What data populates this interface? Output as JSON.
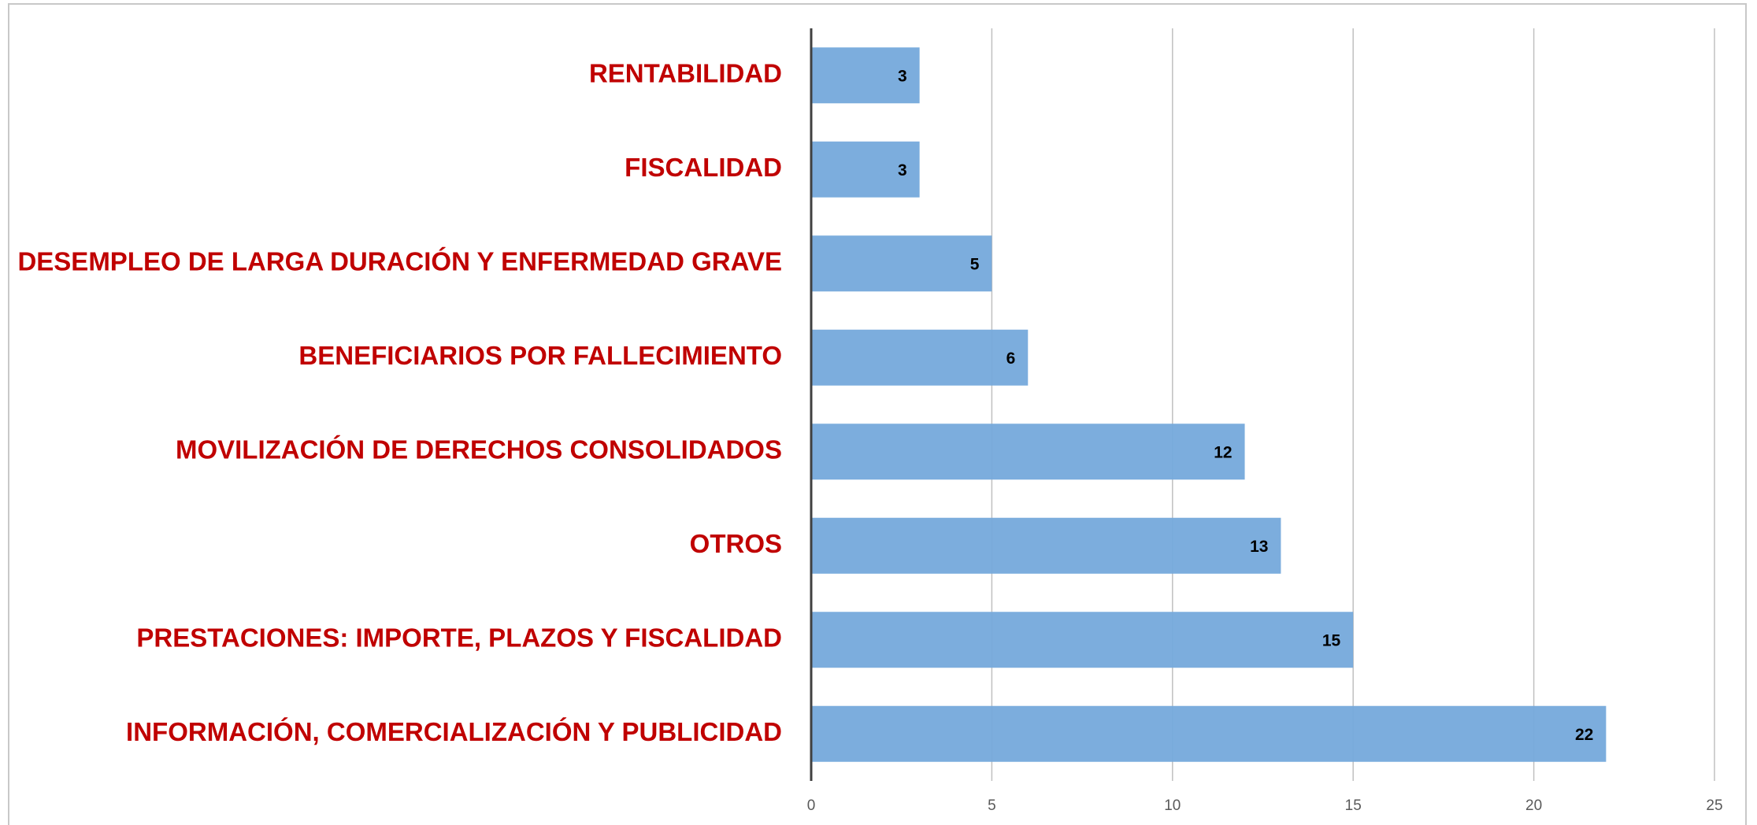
{
  "chart_data": {
    "type": "bar",
    "orientation": "horizontal",
    "categories": [
      "RENTABILIDAD",
      "FISCALIDAD",
      "DESEMPLEO DE LARGA DURACIÓN Y ENFERMEDAD GRAVE",
      "BENEFICIARIOS POR FALLECIMIENTO",
      "MOVILIZACIÓN DE DERECHOS CONSOLIDADOS",
      "OTROS",
      "PRESTACIONES: IMPORTE, PLAZOS Y FISCALIDAD",
      "INFORMACIÓN, COMERCIALIZACIÓN Y PUBLICIDAD"
    ],
    "values": [
      3,
      3,
      5,
      6,
      12,
      13,
      15,
      22
    ],
    "color": "#75a9db",
    "xlim": [
      0,
      25
    ],
    "xticks": [
      0,
      5,
      10,
      15,
      20,
      25
    ],
    "grid": true
  }
}
